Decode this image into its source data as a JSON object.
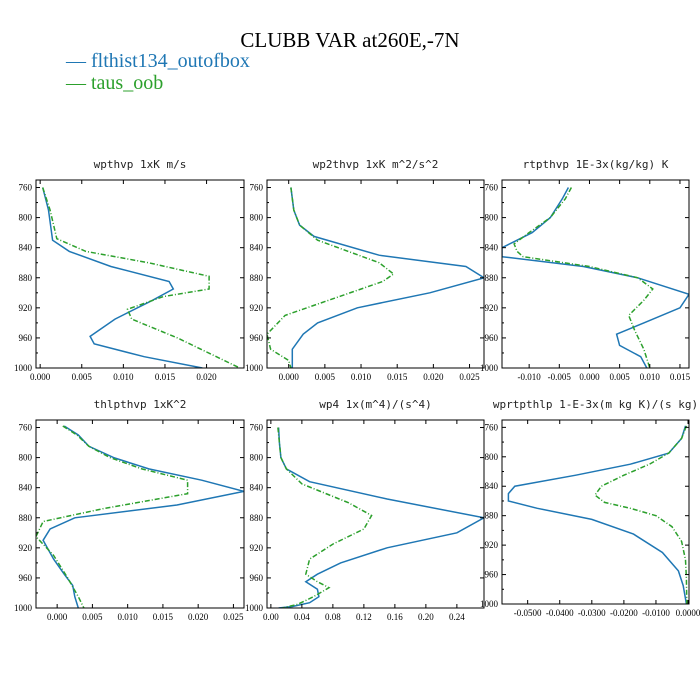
{
  "title": "CLUBB VAR at260E,-7N",
  "legend": [
    {
      "name": "flthist134_outofbox",
      "color": "#1f77b4"
    },
    {
      "name": "taus_oob",
      "color": "#2ca02c"
    }
  ],
  "chart_data": [
    {
      "type": "line",
      "title": "wpthvp  1xK m/s",
      "xlim": [
        -0.0005,
        0.0245
      ],
      "ylim": [
        1000,
        750
      ],
      "xticks": [
        0,
        0.005,
        0.01,
        0.015,
        0.02
      ],
      "xtick_labels": [
        "0.000",
        "0.005",
        "0.010",
        "0.015",
        "0.020"
      ],
      "yticks": [
        760,
        800,
        840,
        880,
        920,
        960,
        1000
      ],
      "series": [
        {
          "name": "flthist134_outofbox",
          "color": "#1f77b4",
          "dash": "solid",
          "x": [
            0.0003,
            0.001,
            0.0015,
            0.0035,
            0.0085,
            0.0155,
            0.016,
            0.0135,
            0.009,
            0.006,
            0.0065,
            0.0125,
            0.0195
          ],
          "y": [
            760,
            790,
            830,
            845,
            865,
            885,
            895,
            910,
            935,
            958,
            968,
            985,
            1000
          ]
        },
        {
          "name": "taus_oob",
          "color": "#2ca02c",
          "dash": "dashed",
          "x": [
            0.0003,
            0.0012,
            0.002,
            0.0055,
            0.013,
            0.0203,
            0.0203,
            0.0148,
            0.0105,
            0.011,
            0.0165,
            0.024
          ],
          "y": [
            760,
            790,
            828,
            845,
            860,
            878,
            895,
            905,
            922,
            935,
            960,
            1000
          ]
        }
      ]
    },
    {
      "type": "line",
      "title": "wp2thvp  1xK m^2/s^2",
      "xlim": [
        -0.003,
        0.027
      ],
      "ylim": [
        1000,
        750
      ],
      "xticks": [
        0,
        0.005,
        0.01,
        0.015,
        0.02,
        0.025
      ],
      "xtick_labels": [
        "0.000",
        "0.005",
        "0.010",
        "0.015",
        "0.020",
        "0.025"
      ],
      "yticks": [
        760,
        800,
        840,
        880,
        920,
        960,
        1000
      ],
      "series": [
        {
          "name": "flthist134_outofbox",
          "color": "#1f77b4",
          "dash": "solid",
          "x": [
            0.0003,
            0.0007,
            0.0015,
            0.0035,
            0.0125,
            0.0245,
            0.027,
            0.0195,
            0.0095,
            0.004,
            0.002,
            0.0005,
            0.0005
          ],
          "y": [
            760,
            790,
            810,
            825,
            850,
            865,
            880,
            900,
            920,
            940,
            955,
            975,
            1000
          ]
        },
        {
          "name": "taus_oob",
          "color": "#2ca02c",
          "dash": "dashed",
          "x": [
            0.0003,
            0.0007,
            0.0015,
            0.004,
            0.0125,
            0.0145,
            0.013,
            0.0055,
            -0.0005,
            -0.003,
            -0.0025,
            0.0,
            0.0003
          ],
          "y": [
            760,
            790,
            810,
            830,
            860,
            875,
            885,
            910,
            930,
            955,
            975,
            990,
            1000
          ]
        }
      ]
    },
    {
      "type": "line",
      "title": "rtpthvp  1E-3x(kg/kg) K",
      "xlim": [
        -0.0145,
        0.0165
      ],
      "ylim": [
        1000,
        750
      ],
      "xticks": [
        -0.01,
        -0.005,
        0,
        0.005,
        0.01,
        0.015
      ],
      "xtick_labels": [
        "-0.010",
        "-0.005",
        "0.000",
        "0.005",
        "0.010",
        "0.015"
      ],
      "yticks": [
        760,
        800,
        840,
        880,
        920,
        960,
        1000
      ],
      "series": [
        {
          "name": "flthist134_outofbox",
          "color": "#1f77b4",
          "dash": "solid",
          "x": [
            -0.0035,
            -0.0045,
            -0.0065,
            -0.0095,
            -0.0125,
            -0.0145,
            -0.0145,
            -0.001,
            0.008,
            0.0165,
            0.015,
            0.009,
            0.0045,
            0.005,
            0.0085,
            0.0095
          ],
          "y": [
            760,
            775,
            800,
            820,
            832,
            840,
            852,
            865,
            880,
            902,
            920,
            940,
            955,
            970,
            985,
            1000
          ]
        },
        {
          "name": "taus_oob",
          "color": "#2ca02c",
          "dash": "dashed",
          "x": [
            -0.003,
            -0.004,
            -0.0065,
            -0.01,
            -0.0125,
            -0.012,
            -0.011,
            0.0,
            0.008,
            0.0105,
            0.009,
            0.0065,
            0.0075,
            0.009,
            0.01
          ],
          "y": [
            760,
            775,
            800,
            820,
            835,
            845,
            852,
            865,
            880,
            895,
            910,
            930,
            950,
            975,
            1000
          ]
        }
      ]
    },
    {
      "type": "line",
      "title": "thlpthvp  1xK^2",
      "xlim": [
        -0.003,
        0.0265
      ],
      "ylim": [
        1000,
        750
      ],
      "xticks": [
        0,
        0.005,
        0.01,
        0.015,
        0.02,
        0.025
      ],
      "xtick_labels": [
        "0.000",
        "0.005",
        "0.010",
        "0.015",
        "0.020",
        "0.025"
      ],
      "yticks": [
        760,
        800,
        840,
        880,
        920,
        960,
        1000
      ],
      "series": [
        {
          "name": "flthist134_outofbox",
          "color": "#1f77b4",
          "dash": "solid",
          "x": [
            0.001,
            0.003,
            0.0045,
            0.008,
            0.013,
            0.0205,
            0.0265,
            0.017,
            0.0025,
            -0.001,
            -0.002,
            -0.0005,
            0.001,
            0.0022,
            0.0025,
            0.003
          ],
          "y": [
            758,
            770,
            785,
            800,
            815,
            830,
            845,
            863,
            880,
            895,
            910,
            935,
            955,
            970,
            985,
            1000
          ]
        },
        {
          "name": "taus_oob",
          "color": "#2ca02c",
          "dash": "dashed",
          "x": [
            0.0008,
            0.0028,
            0.0045,
            0.0075,
            0.012,
            0.0185,
            0.0185,
            0.0065,
            -0.002,
            -0.003,
            -0.0005,
            0.0015,
            0.003,
            0.0038
          ],
          "y": [
            758,
            770,
            785,
            800,
            815,
            830,
            848,
            868,
            885,
            905,
            930,
            960,
            985,
            1000
          ]
        }
      ]
    },
    {
      "type": "line",
      "title": "wp4  1x(m^4)/(s^4)",
      "xlim": [
        -0.005,
        0.275
      ],
      "ylim": [
        1000,
        750
      ],
      "xticks": [
        0,
        0.04,
        0.08,
        0.12,
        0.16,
        0.2,
        0.24
      ],
      "xtick_labels": [
        "0.00",
        "0.04",
        "0.08",
        "0.12",
        "0.16",
        "0.20",
        "0.24"
      ],
      "yticks": [
        760,
        800,
        840,
        880,
        920,
        960,
        1000
      ],
      "series": [
        {
          "name": "flthist134_outofbox",
          "color": "#1f77b4",
          "dash": "solid",
          "x": [
            0.01,
            0.011,
            0.013,
            0.02,
            0.05,
            0.15,
            0.275,
            0.24,
            0.15,
            0.09,
            0.06,
            0.045,
            0.06,
            0.062,
            0.05,
            0.028,
            0.01
          ],
          "y": [
            760,
            780,
            800,
            815,
            832,
            855,
            880,
            900,
            920,
            940,
            955,
            965,
            975,
            985,
            993,
            998,
            1000
          ]
        },
        {
          "name": "taus_oob",
          "color": "#2ca02c",
          "dash": "dashed",
          "x": [
            0.009,
            0.011,
            0.013,
            0.02,
            0.04,
            0.1,
            0.13,
            0.12,
            0.08,
            0.05,
            0.045,
            0.06,
            0.075,
            0.055,
            0.035,
            0.015
          ],
          "y": [
            760,
            780,
            800,
            815,
            835,
            860,
            877,
            895,
            915,
            935,
            955,
            965,
            973,
            985,
            995,
            1000
          ]
        }
      ]
    },
    {
      "type": "line",
      "title": "wprtpthlp  1-E-3x(m kg K)/(s kg)",
      "xlim": [
        -0.058,
        0.0003
      ],
      "ylim": [
        1000,
        750
      ],
      "xticks": [
        -0.05,
        -0.04,
        -0.03,
        -0.02,
        -0.01,
        0
      ],
      "xtick_labels": [
        "-0.0500",
        "-0.0400",
        "-0.0300",
        "-0.0200",
        "-0.0100",
        "0.0000"
      ],
      "yticks": [
        760,
        800,
        840,
        880,
        920,
        960,
        1000
      ],
      "series": [
        {
          "name": "flthist134_outofbox",
          "color": "#1f77b4",
          "dash": "solid",
          "x": [
            -0.0008,
            -0.002,
            -0.006,
            -0.018,
            -0.035,
            -0.054,
            -0.056,
            -0.056,
            -0.047,
            -0.03,
            -0.017,
            -0.008,
            -0.003,
            -0.0015,
            -0.0005
          ],
          "y": [
            758,
            775,
            795,
            810,
            825,
            840,
            850,
            860,
            870,
            885,
            905,
            930,
            955,
            975,
            1000
          ]
        },
        {
          "name": "taus_oob",
          "color": "#2ca02c",
          "dash": "dashed",
          "x": [
            -0.0005,
            -0.002,
            -0.006,
            -0.012,
            -0.02,
            -0.027,
            -0.029,
            -0.026,
            -0.018,
            -0.01,
            -0.005,
            -0.002,
            -0.0008,
            -0.0005,
            -0.0004
          ],
          "y": [
            758,
            775,
            795,
            810,
            825,
            840,
            852,
            862,
            870,
            880,
            895,
            915,
            940,
            965,
            1000
          ]
        }
      ]
    }
  ]
}
